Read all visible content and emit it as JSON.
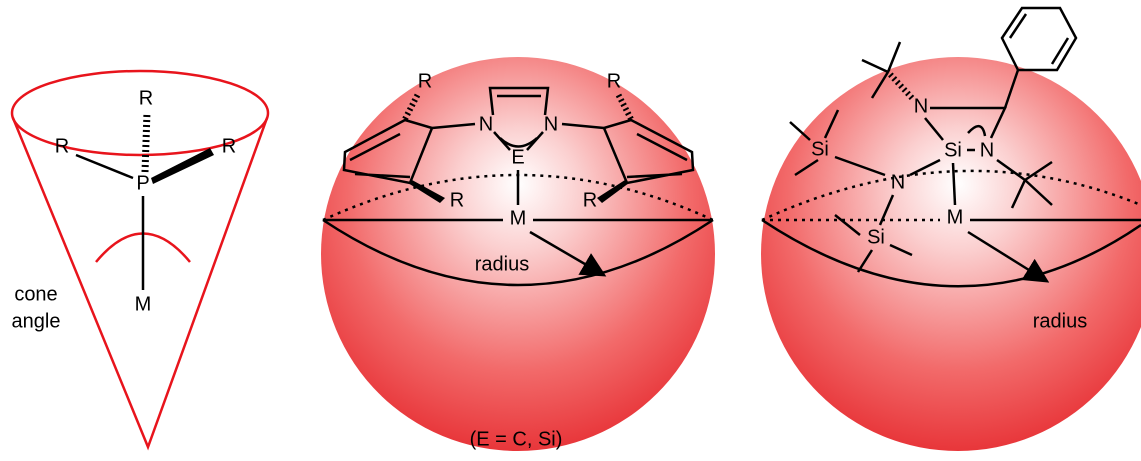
{
  "cone": {
    "substituents": [
      "R",
      "R",
      "R"
    ],
    "center": "P",
    "metal": "M",
    "label": [
      "cone",
      "angle"
    ]
  },
  "sphere_1": {
    "substituents": [
      "R",
      "R",
      "R",
      "R"
    ],
    "ring_atoms": [
      "N",
      "E",
      "N"
    ],
    "metal": "M",
    "label": "radius",
    "note": "(E = C, Si)"
  },
  "sphere_2": {
    "ring_atoms": [
      "N",
      "Si",
      "N"
    ],
    "silyl_atoms": [
      "Si",
      "N",
      "Si"
    ],
    "metal": "M",
    "label": "radius"
  }
}
